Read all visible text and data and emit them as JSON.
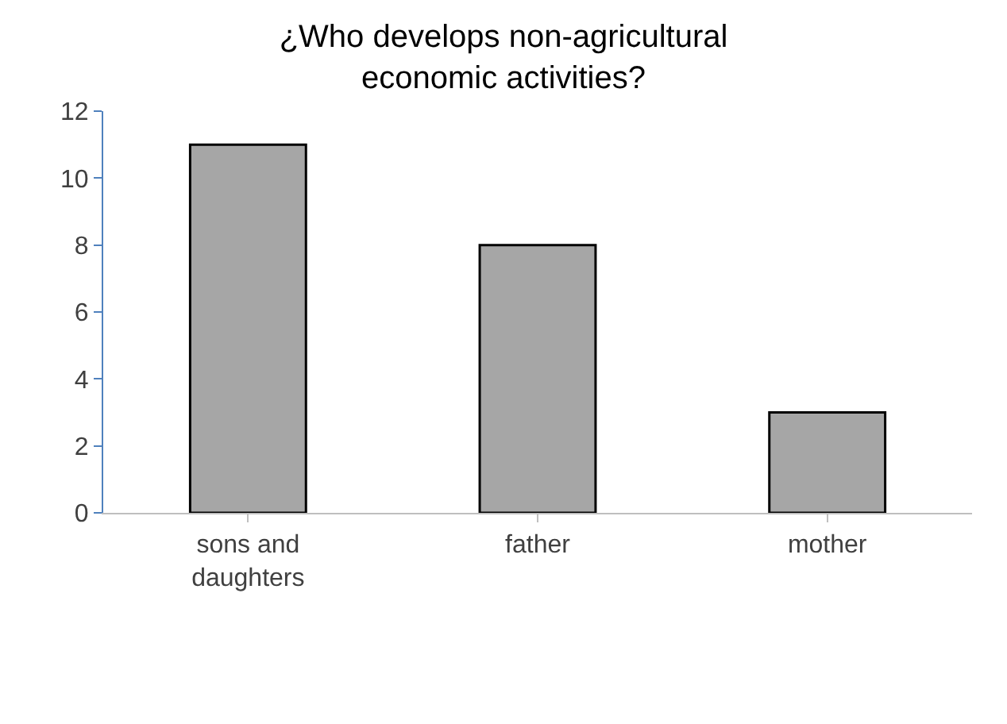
{
  "chart_data": {
    "type": "bar",
    "title": "¿Who develops non-agricultural\neconomic activities?",
    "categories": [
      "sons and daughters",
      "father",
      "mother"
    ],
    "values": [
      11,
      8,
      3
    ],
    "color": "#a6a6a6",
    "ylim": [
      0,
      12
    ],
    "yticks": [
      0,
      2,
      4,
      6,
      8,
      10,
      12
    ]
  }
}
